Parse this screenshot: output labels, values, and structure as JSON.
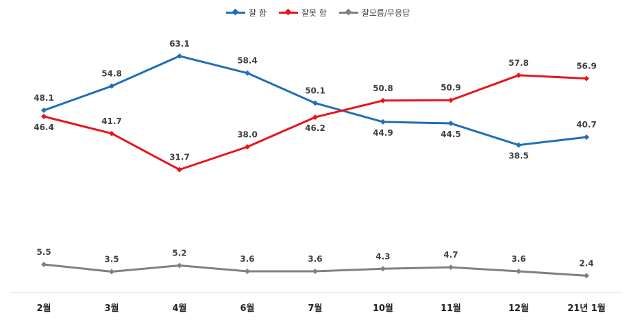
{
  "chart_data": {
    "type": "line",
    "categories": [
      "2월",
      "3월",
      "4월",
      "6월",
      "7월",
      "10월",
      "11월",
      "12월",
      "21년 1월"
    ],
    "series": [
      {
        "name": "잘 함",
        "color": "#1f6fb5",
        "values": [
          48.1,
          54.8,
          63.1,
          58.4,
          50.1,
          44.9,
          44.5,
          38.5,
          40.7
        ]
      },
      {
        "name": "잘못 함",
        "color": "#e8141b",
        "values": [
          46.4,
          41.7,
          31.7,
          38.0,
          46.2,
          50.8,
          50.9,
          57.8,
          56.9
        ]
      },
      {
        "name": "잘모름/무응답",
        "color": "#808080",
        "values": [
          5.5,
          3.5,
          5.2,
          3.6,
          3.6,
          4.3,
          4.7,
          3.6,
          2.4
        ]
      }
    ],
    "ylim": [
      0,
      70
    ],
    "grid": false,
    "legend_position": "top-center"
  }
}
